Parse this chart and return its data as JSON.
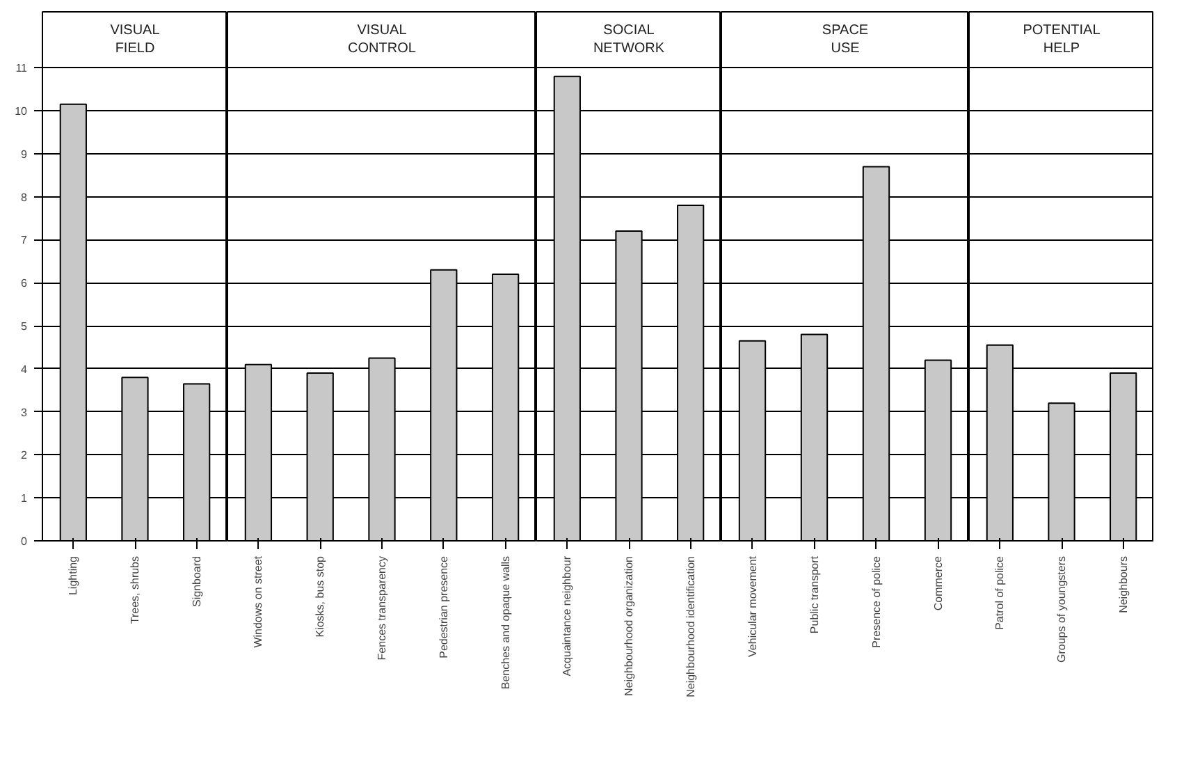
{
  "chart_data": [
    {
      "type": "bar",
      "title": "VISUAL\nFIELD",
      "categories": [
        "Lighting",
        "Trees, shrubs",
        "Signboard"
      ],
      "values": [
        10.15,
        3.8,
        3.65
      ],
      "color": "#c8c8c8",
      "ylim": [
        0,
        12.3
      ],
      "yticks": [
        0,
        1,
        2,
        3,
        4,
        5,
        6,
        7,
        8,
        9,
        10,
        11
      ],
      "grid": "y"
    },
    {
      "type": "bar",
      "title": "VISUAL\nCONTROL",
      "categories": [
        "Windows on street",
        "Kiosks, bus stop",
        "Fences transparency",
        "Pedestrian presence",
        "Benches and opaque walls"
      ],
      "values": [
        4.1,
        3.9,
        4.25,
        6.3,
        6.2
      ],
      "color": "#c8c8c8",
      "ylim": [
        0,
        12.3
      ],
      "yticks": [
        0,
        1,
        2,
        3,
        4,
        5,
        6,
        7,
        8,
        9,
        10,
        11
      ],
      "grid": "y",
      "tick_labels": "x"
    },
    {
      "type": "bar",
      "title": "SOCIAL\nNETWORK",
      "categories": [
        "Acquaintance neighbour",
        "Neighbourhood organization",
        "Neighbourhood identification"
      ],
      "values": [
        10.8,
        7.2,
        7.8
      ],
      "color": "#c8c8c8",
      "ylim": [
        0,
        12.3
      ],
      "yticks": [
        0,
        1,
        2,
        3,
        4,
        5,
        6,
        7,
        8,
        9,
        10,
        11
      ],
      "grid": "y",
      "tick_labels": "x"
    },
    {
      "type": "bar",
      "title": "SPACE\nUSE",
      "categories": [
        "Vehicular movement",
        "Public transport",
        "Presence of police",
        "Commerce"
      ],
      "values": [
        4.65,
        4.8,
        8.7,
        4.2
      ],
      "color": "#c8c8c8",
      "ylim": [
        0,
        12.3
      ],
      "yticks": [
        0,
        1,
        2,
        3,
        4,
        5,
        6,
        7,
        8,
        9,
        10,
        11
      ],
      "grid": "y",
      "tick_labels": "x"
    },
    {
      "type": "bar",
      "title": "POTENTIAL\nHELP",
      "categories": [
        "Patrol of police",
        "Groups of youngsters",
        "Neighbours"
      ],
      "values": [
        4.55,
        3.2,
        3.9
      ],
      "color": "#c8c8c8",
      "ylim": [
        0,
        12.3
      ],
      "yticks": [
        0,
        1,
        2,
        3,
        4,
        5,
        6,
        7,
        8,
        9,
        10,
        11
      ],
      "grid": "y",
      "tick_labels": "x"
    }
  ]
}
